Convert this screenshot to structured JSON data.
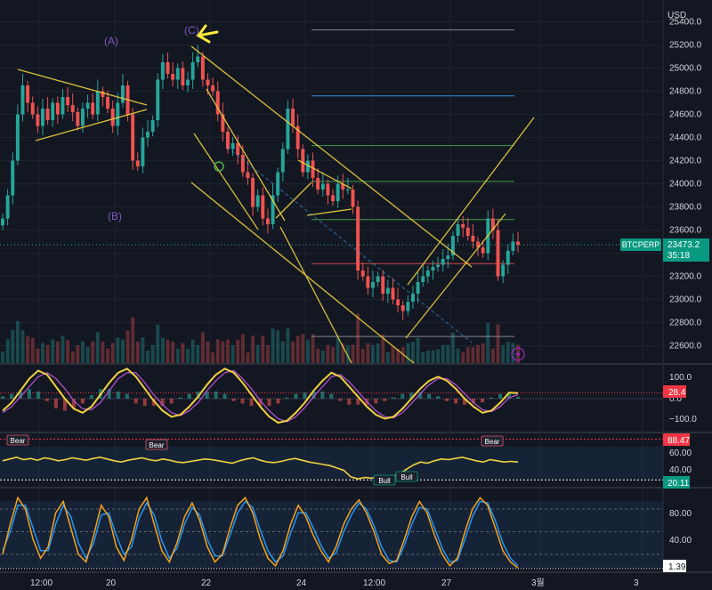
{
  "symbol": "BTCPERP",
  "price": {
    "currency": "USD",
    "last": "23473.2",
    "countdown": "35:18",
    "current_value": 23473.2
  },
  "colors": {
    "up": "#26a69a",
    "down": "#ef5350",
    "channel": "#f0d23c",
    "wave_label": "#7e57c2",
    "highlight_arrow": "#ffeb3b",
    "fib_green": "#4caf50",
    "fib_blue": "#42a5f5",
    "fib_red": "#ef5350",
    "fib_grey": "#9598a1",
    "rsi_line": "#f0d23c",
    "stoch_k": "#f7a21b",
    "stoch_d": "#2196f3",
    "macd_signal": "#b04fd0",
    "badge_red": "#f23645",
    "badge_green": "#089981"
  },
  "wave_labels": [
    "(A)",
    "(B)",
    "(C)"
  ],
  "x_axis": {
    "labels": [
      "12:00",
      "20",
      "22",
      "24",
      "12:00",
      "27",
      "3월",
      "3"
    ]
  },
  "chart_data": [
    {
      "type": "candlestick",
      "panel": "price",
      "currency": "USD",
      "ylim": [
        22450,
        25550
      ],
      "yticks": [
        22600,
        22800,
        23000,
        23200,
        23400,
        23600,
        23800,
        24000,
        24200,
        24400,
        24600,
        24800,
        25000,
        25200,
        25400
      ],
      "ytick_labels": [
        "22600.0",
        "22800.0",
        "23000.0",
        "23200.0",
        "23400.0",
        "23600.0",
        "23800.0",
        "24000.0",
        "24200.0",
        "24400.0",
        "24600.0",
        "24800.0",
        "25000.0",
        "25200.0",
        "25400.0"
      ],
      "candles_close": [
        23700,
        23900,
        24200,
        24600,
        24850,
        24700,
        24600,
        24500,
        24650,
        24550,
        24700,
        24600,
        24750,
        24680,
        24620,
        24500,
        24650,
        24700,
        24600,
        24800,
        24750,
        24650,
        24500,
        24700,
        24850,
        24600,
        24200,
        24150,
        24400,
        24450,
        24550,
        24900,
        25050,
        24950,
        24900,
        25000,
        24850,
        24900,
        25050,
        25100,
        24900,
        24850,
        24800,
        24600,
        24450,
        24300,
        24350,
        24250,
        24100,
        24050,
        23800,
        23900,
        23700,
        23650,
        23900,
        24100,
        24300,
        24650,
        24500,
        24300,
        24100,
        24200,
        24050,
        23950,
        24000,
        23900,
        23850,
        24000,
        23950,
        23950,
        23800,
        23250,
        23200,
        23100,
        23150,
        23200,
        23050,
        23100,
        23000,
        22950,
        22900,
        22980,
        23050,
        23150,
        23200,
        23250,
        23280,
        23300,
        23350,
        23380,
        23550,
        23650,
        23620,
        23550,
        23500,
        23450,
        23400,
        23700,
        23600,
        23200,
        23300,
        23420,
        23500,
        23470
      ],
      "horizontal_levels": [
        25330,
        24760,
        24330,
        24020,
        23690,
        23310,
        22680
      ],
      "current_price": 23473.2
    },
    {
      "type": "line",
      "panel": "macd",
      "ytick_labels": [
        "100.0",
        "0.0",
        "−100.0"
      ],
      "yticks": [
        100,
        0,
        -100
      ],
      "ylim": [
        -160,
        160
      ],
      "last_value": "28.4",
      "series": [
        {
          "values": [
            -60,
            -20,
            40,
            100,
            140,
            120,
            60,
            0,
            -50,
            -70,
            -40,
            20,
            80,
            130,
            150,
            110,
            50,
            -10,
            -60,
            -90,
            -80,
            -40,
            10,
            70,
            120,
            150,
            130,
            80,
            20,
            -40,
            -90,
            -120,
            -110,
            -70,
            -20,
            40,
            90,
            130,
            110,
            60,
            10,
            -40,
            -80,
            -100,
            -90,
            -50,
            0,
            50,
            90,
            110,
            90,
            50,
            0,
            -40,
            -70,
            -60,
            -20,
            30,
            28
          ]
        },
        {
          "values": [
            -70,
            -40,
            10,
            60,
            110,
            130,
            100,
            50,
            -10,
            -50,
            -55,
            -20,
            40,
            100,
            130,
            130,
            80,
            20,
            -30,
            -70,
            -85,
            -60,
            -20,
            40,
            90,
            130,
            140,
            100,
            50,
            -10,
            -60,
            -100,
            -115,
            -90,
            -45,
            10,
            60,
            110,
            120,
            85,
            35,
            -15,
            -60,
            -90,
            -95,
            -70,
            -25,
            25,
            70,
            100,
            100,
            70,
            25,
            -20,
            -55,
            -65,
            -40,
            5,
            20
          ]
        }
      ]
    },
    {
      "type": "line",
      "panel": "rsi",
      "ytick_labels": [
        "60.00",
        "40.00"
      ],
      "yticks": [
        60,
        40
      ],
      "ylim": [
        10,
        95
      ],
      "bands": {
        "upper": 88.47,
        "lower": 20.11
      },
      "badge_upper": "88.47",
      "badge_lower": "20.11",
      "series": [
        {
          "values": [
            52,
            55,
            58,
            54,
            56,
            53,
            57,
            55,
            52,
            54,
            57,
            55,
            53,
            56,
            58,
            55,
            52,
            50,
            53,
            55,
            57,
            54,
            52,
            55,
            53,
            50,
            49,
            51,
            53,
            55,
            54,
            52,
            50,
            48,
            52,
            55,
            57,
            53,
            50,
            49,
            51,
            54,
            56,
            53,
            50,
            48,
            46,
            44,
            40,
            36,
            25,
            22,
            24,
            23,
            25,
            24,
            26,
            30,
            38,
            45,
            50,
            48,
            52,
            55,
            54,
            56,
            58,
            55,
            52,
            50,
            54,
            52,
            50,
            51,
            50
          ]
        }
      ],
      "annotations": [
        "Bear",
        "Bear",
        "Bull",
        "Bull",
        "Bear"
      ]
    },
    {
      "type": "line",
      "panel": "stoch",
      "ytick_labels": [
        "80.00",
        "40.00"
      ],
      "yticks": [
        80,
        40
      ],
      "ylim": [
        0,
        100
      ],
      "last_value": "1.39",
      "series": [
        {
          "values": [
            20,
            60,
            95,
            80,
            40,
            15,
            30,
            75,
            90,
            55,
            20,
            10,
            45,
            85,
            70,
            30,
            12,
            40,
            80,
            95,
            60,
            25,
            10,
            35,
            70,
            88,
            65,
            30,
            10,
            20,
            55,
            85,
            95,
            75,
            40,
            15,
            5,
            25,
            60,
            85,
            70,
            45,
            25,
            10,
            30,
            60,
            80,
            92,
            75,
            50,
            20,
            8,
            12,
            40,
            70,
            90,
            75,
            45,
            20,
            5,
            15,
            50,
            80,
            95,
            85,
            55,
            25,
            10,
            2
          ]
        },
        {
          "values": [
            25,
            50,
            85,
            85,
            55,
            25,
            25,
            60,
            85,
            70,
            35,
            15,
            35,
            72,
            75,
            45,
            20,
            30,
            68,
            88,
            72,
            38,
            15,
            28,
            60,
            82,
            72,
            40,
            18,
            18,
            45,
            75,
            90,
            82,
            52,
            25,
            10,
            18,
            48,
            75,
            75,
            55,
            32,
            15,
            22,
            50,
            72,
            88,
            80,
            58,
            30,
            12,
            10,
            32,
            60,
            82,
            80,
            55,
            28,
            10,
            12,
            40,
            70,
            90,
            88,
            65,
            35,
            15,
            5
          ]
        }
      ]
    }
  ]
}
